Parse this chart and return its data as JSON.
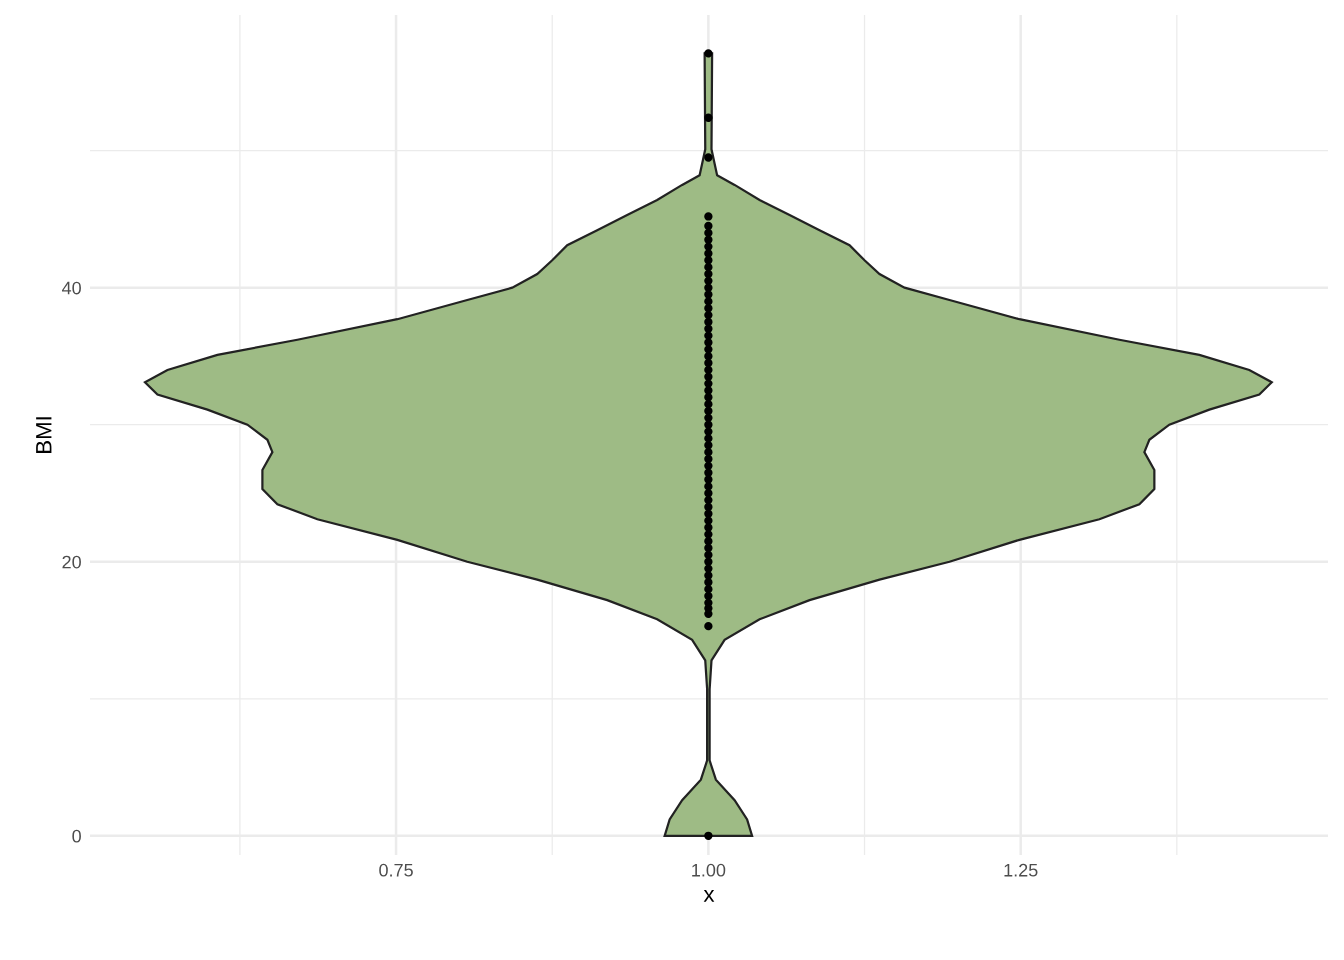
{
  "chart_data": {
    "type": "scatter",
    "xlabel": "x",
    "ylabel": "BMI",
    "xlim": [
      0.505,
      1.496
    ],
    "ylim": [
      -1.4,
      59.9
    ],
    "xticks": [
      {
        "value": 0.625,
        "label": null
      },
      {
        "value": 0.75,
        "label": "0.75"
      },
      {
        "value": 0.875,
        "label": null
      },
      {
        "value": 1.0,
        "label": "1.00"
      },
      {
        "value": 1.125,
        "label": null
      },
      {
        "value": 1.25,
        "label": "1.25"
      },
      {
        "value": 1.375,
        "label": null
      }
    ],
    "yticks": [
      0,
      {
        "value": 10,
        "label": null
      },
      20,
      {
        "value": 30,
        "label": null
      },
      40,
      {
        "value": 50,
        "label": null
      }
    ],
    "grid": true,
    "series": [
      {
        "type": "area",
        "color": "#9ebb85",
        "x": [
          1.003,
          1.0025,
          1.007,
          1.021,
          1.041,
          1.065,
          1.089,
          1.113,
          1.125,
          1.137,
          1.157,
          1.193,
          1.249,
          1.329,
          1.393,
          1.433,
          1.451,
          1.441,
          1.401,
          1.369,
          1.353,
          1.349,
          1.357,
          1.357,
          1.345,
          1.313,
          1.249,
          1.193,
          1.137,
          1.081,
          1.041,
          1.013,
          1.0025,
          1.001,
          1.001,
          1.006,
          1.021,
          1.031,
          1.035,
          0.965,
          0.969,
          0.979,
          0.994,
          0.999,
          0.999,
          0.9975,
          0.987,
          0.959,
          0.919,
          0.863,
          0.807,
          0.751,
          0.687,
          0.655,
          0.643,
          0.643,
          0.651,
          0.647,
          0.631,
          0.599,
          0.559,
          0.549,
          0.567,
          0.607,
          0.671,
          0.751,
          0.807,
          0.843,
          0.863,
          0.875,
          0.887,
          0.911,
          0.935,
          0.959,
          0.979,
          0.993,
          0.9975,
          0.997
        ],
        "values": [
          57.1,
          50.1,
          48.2,
          47.5,
          46.4,
          45.3,
          44.2,
          43.1,
          42.0,
          41.0,
          40.0,
          39.1,
          37.7,
          36.2,
          35.1,
          34.0,
          33.1,
          32.2,
          31.1,
          30.0,
          28.9,
          28.0,
          26.7,
          25.3,
          24.2,
          23.1,
          21.6,
          20.0,
          18.7,
          17.2,
          15.8,
          14.3,
          12.8,
          10.7,
          5.5,
          4.1,
          2.6,
          1.2,
          0,
          0,
          1.2,
          2.6,
          4.1,
          5.5,
          10.7,
          12.8,
          14.3,
          15.8,
          17.2,
          18.7,
          20.0,
          21.6,
          23.1,
          24.2,
          25.3,
          26.7,
          28.0,
          28.9,
          30.0,
          31.1,
          32.2,
          33.1,
          34.0,
          35.1,
          36.2,
          37.7,
          39.1,
          40.0,
          41.0,
          42.0,
          43.1,
          44.2,
          45.3,
          46.4,
          47.5,
          48.2,
          50.1,
          57.1
        ]
      },
      {
        "color": "#000000",
        "x": [
          1,
          1,
          1,
          1,
          1,
          1,
          1,
          1,
          1,
          1,
          1,
          1,
          1,
          1,
          1,
          1,
          1,
          1,
          1,
          1,
          1,
          1,
          1,
          1,
          1,
          1,
          1,
          1,
          1,
          1,
          1,
          1,
          1,
          1,
          1,
          1,
          1,
          1,
          1,
          1,
          1,
          1,
          1,
          1,
          1,
          1,
          1,
          1,
          1,
          1,
          1,
          1,
          1,
          1,
          1,
          1,
          1,
          1,
          1,
          1,
          1,
          1,
          1,
          1
        ],
        "values": [
          0,
          15.3,
          16.2,
          16.6,
          17,
          17.5,
          18,
          18.5,
          19,
          19.5,
          20,
          20.5,
          21,
          21.5,
          22,
          22.5,
          23,
          23.5,
          24,
          24.5,
          25,
          25.5,
          26,
          26.5,
          27,
          27.5,
          28,
          28.5,
          29,
          29.5,
          30,
          30.5,
          31,
          31.5,
          32,
          32.5,
          33,
          33.5,
          34,
          34.5,
          35,
          35.5,
          36,
          36.5,
          37,
          37.5,
          38,
          38.5,
          39,
          39.5,
          40,
          40.5,
          41,
          41.5,
          42,
          42.5,
          43,
          43.5,
          44,
          44.5,
          45.2,
          49.5,
          52.4,
          57.1
        ]
      }
    ]
  }
}
